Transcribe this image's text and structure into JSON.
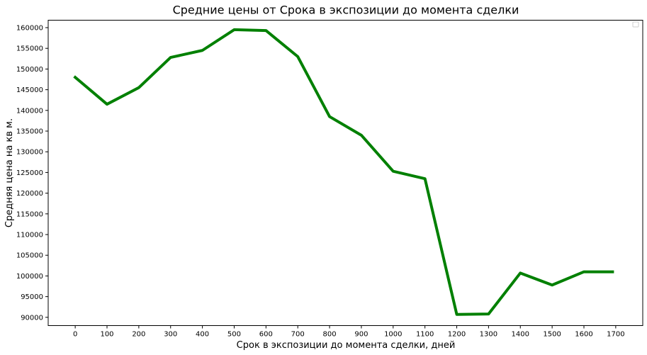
{
  "chart_data": {
    "type": "line",
    "title": "Средние цены от Срока в экспозиции до момента сделки",
    "xlabel": "Срок в экспозиции до момента сделки, дней",
    "ylabel": "Средняя цена на кв м.",
    "xlim": [
      -85,
      1785
    ],
    "ylim": [
      88000,
      161800
    ],
    "xticks": [
      0,
      100,
      200,
      300,
      400,
      500,
      600,
      700,
      800,
      900,
      1000,
      1100,
      1200,
      1300,
      1400,
      1500,
      1600,
      1700
    ],
    "yticks": [
      90000,
      95000,
      100000,
      105000,
      110000,
      115000,
      120000,
      125000,
      130000,
      135000,
      140000,
      145000,
      150000,
      155000,
      160000
    ],
    "grid": false,
    "legend": "top-right",
    "series": [
      {
        "color": "#008000",
        "x": [
          0,
          100,
          200,
          300,
          400,
          500,
          600,
          700,
          800,
          900,
          1000,
          1100,
          1200,
          1300,
          1400,
          1500,
          1600,
          1690
        ],
        "y": [
          148000,
          141500,
          145500,
          152800,
          154500,
          159500,
          159300,
          153000,
          138500,
          134000,
          125300,
          123500,
          90700,
          90800,
          100700,
          97800,
          101000,
          101000
        ]
      }
    ]
  }
}
